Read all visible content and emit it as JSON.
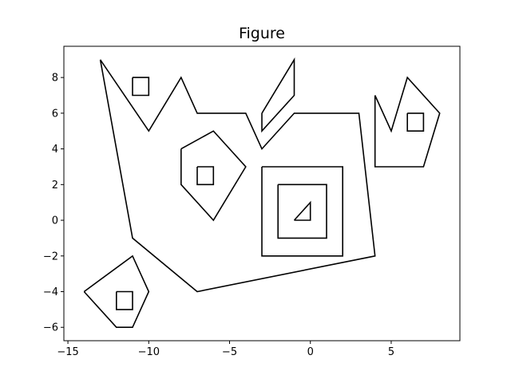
{
  "chart_data": {
    "type": "line",
    "title": "Figure",
    "xlabel": "",
    "ylabel": "",
    "xlim": [
      -15.25,
      9.25
    ],
    "ylim": [
      -6.75,
      9.75
    ],
    "xticks": [
      -15,
      -10,
      -5,
      0,
      5
    ],
    "xtick_labels": [
      "−15",
      "−10",
      "−5",
      "0",
      "5"
    ],
    "yticks": [
      -6,
      -4,
      -2,
      0,
      2,
      4,
      6,
      8
    ],
    "ytick_labels": [
      "−6",
      "−4",
      "−2",
      "0",
      "2",
      "4",
      "6",
      "8"
    ],
    "grid": false,
    "line_color": "#000000",
    "shapes": [
      {
        "points": [
          [
            -13,
            9
          ],
          [
            -10,
            5
          ],
          [
            -8,
            8
          ],
          [
            -7,
            6
          ],
          [
            -4,
            6
          ],
          [
            -3,
            4
          ],
          [
            -1,
            6
          ],
          [
            3,
            6
          ],
          [
            4,
            -2
          ],
          [
            -7,
            -4
          ],
          [
            -11,
            -1
          ],
          [
            -13,
            9
          ]
        ]
      },
      {
        "points": [
          [
            -11,
            8
          ],
          [
            -10,
            8
          ],
          [
            -10,
            7
          ],
          [
            -11,
            7
          ],
          [
            -11,
            8
          ]
        ]
      },
      {
        "points": [
          [
            -3,
            6
          ],
          [
            -1,
            9
          ],
          [
            -1,
            7
          ],
          [
            -3,
            5
          ],
          [
            -3,
            6
          ]
        ]
      },
      {
        "points": [
          [
            -8,
            4
          ],
          [
            -6,
            5
          ],
          [
            -4,
            3
          ],
          [
            -6,
            0
          ],
          [
            -8,
            2
          ],
          [
            -8,
            4
          ]
        ]
      },
      {
        "points": [
          [
            -7,
            3
          ],
          [
            -6,
            3
          ],
          [
            -6,
            2
          ],
          [
            -7,
            2
          ],
          [
            -7,
            3
          ]
        ]
      },
      {
        "points": [
          [
            -3,
            3
          ],
          [
            2,
            3
          ],
          [
            2,
            -2
          ],
          [
            -3,
            -2
          ],
          [
            -3,
            3
          ]
        ]
      },
      {
        "points": [
          [
            -2,
            2
          ],
          [
            1,
            2
          ],
          [
            1,
            -1
          ],
          [
            -2,
            -1
          ],
          [
            -2,
            2
          ]
        ]
      },
      {
        "points": [
          [
            -1,
            0
          ],
          [
            0,
            1
          ],
          [
            0,
            0
          ],
          [
            -1,
            0
          ]
        ]
      },
      {
        "points": [
          [
            4,
            7
          ],
          [
            5,
            5
          ],
          [
            6,
            8
          ],
          [
            8,
            6
          ],
          [
            7,
            3
          ],
          [
            4,
            3
          ],
          [
            4,
            7
          ]
        ]
      },
      {
        "points": [
          [
            6,
            6
          ],
          [
            7,
            6
          ],
          [
            7,
            5
          ],
          [
            6,
            5
          ],
          [
            6,
            6
          ]
        ]
      },
      {
        "points": [
          [
            -14,
            -4
          ],
          [
            -11,
            -2
          ],
          [
            -10,
            -4
          ],
          [
            -11,
            -6
          ],
          [
            -12,
            -6
          ],
          [
            -14,
            -4
          ]
        ]
      },
      {
        "points": [
          [
            -12,
            -4
          ],
          [
            -11,
            -4
          ],
          [
            -11,
            -5
          ],
          [
            -12,
            -5
          ],
          [
            -12,
            -4
          ]
        ]
      }
    ]
  }
}
